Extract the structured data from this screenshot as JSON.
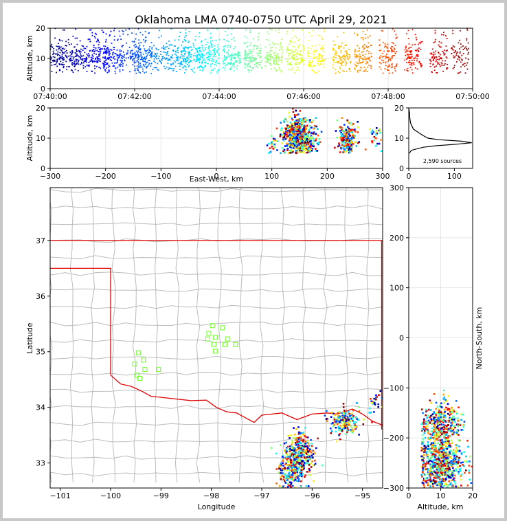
{
  "chart_data": [
    {
      "type": "scatter",
      "panel": "altitude-time",
      "title": "Oklahoma LMA 0740-0750 UTC April 29, 2021",
      "ylabel": "Altitude, km",
      "xlabel": "",
      "x_ticks": [
        "07:40:00",
        "07:42:00",
        "07:44:00",
        "07:46:00",
        "07:48:00",
        "07:50:00"
      ],
      "y_ticks": [
        "0",
        "10",
        "20"
      ],
      "xlim_minutes": [
        0,
        10
      ],
      "ylim": [
        0,
        20
      ],
      "grid": true,
      "color_scale": "jet (blue early -> red late)",
      "density_profile": [
        {
          "t": 0.1,
          "n": 28,
          "spread": 2.5
        },
        {
          "t": 0.4,
          "n": 30,
          "spread": 2.2
        },
        {
          "t": 0.8,
          "n": 32,
          "spread": 2.0
        },
        {
          "t": 1.2,
          "n": 45,
          "spread": 2.8
        },
        {
          "t": 1.5,
          "n": 35,
          "spread": 2.4
        },
        {
          "t": 1.9,
          "n": 30,
          "spread": 2.2
        },
        {
          "t": 2.2,
          "n": 40,
          "spread": 2.5
        },
        {
          "t": 2.6,
          "n": 25,
          "spread": 2.0
        },
        {
          "t": 3.0,
          "n": 35,
          "spread": 2.5
        },
        {
          "t": 3.4,
          "n": 40,
          "spread": 2.2
        },
        {
          "t": 3.8,
          "n": 38,
          "spread": 2.4
        },
        {
          "t": 4.3,
          "n": 40,
          "spread": 2.5
        },
        {
          "t": 4.8,
          "n": 42,
          "spread": 2.6
        },
        {
          "t": 5.3,
          "n": 35,
          "spread": 2.5
        },
        {
          "t": 5.8,
          "n": 38,
          "spread": 2.8
        },
        {
          "t": 6.3,
          "n": 30,
          "spread": 2.4
        },
        {
          "t": 6.9,
          "n": 35,
          "spread": 2.6
        },
        {
          "t": 7.4,
          "n": 38,
          "spread": 2.8
        },
        {
          "t": 8.0,
          "n": 36,
          "spread": 3.0
        },
        {
          "t": 8.6,
          "n": 35,
          "spread": 2.8
        },
        {
          "t": 9.2,
          "n": 32,
          "spread": 2.6
        },
        {
          "t": 9.7,
          "n": 24,
          "spread": 2.6
        }
      ]
    },
    {
      "type": "scatter",
      "panel": "altitude-east-west",
      "xlabel": "East-West, km",
      "ylabel": "Altitude, km",
      "xlim": [
        -300,
        300
      ],
      "ylim": [
        0,
        20
      ],
      "x_ticks": [
        "−300",
        "−200",
        "−100",
        "0",
        "100",
        "200",
        "300"
      ],
      "y_ticks": [
        "0",
        "10",
        "20"
      ],
      "grid": true,
      "clusters": [
        {
          "x": 148,
          "x_spread": 14,
          "z": 10,
          "z_spread": 3.5,
          "n": 700
        },
        {
          "x": 235,
          "x_spread": 8,
          "z": 9,
          "z_spread": 3,
          "n": 250
        },
        {
          "x": 102,
          "x_spread": 5,
          "z": 7,
          "z_spread": 1.5,
          "n": 25
        },
        {
          "x": 290,
          "x_spread": 8,
          "z": 10,
          "z_spread": 2,
          "n": 25
        }
      ]
    },
    {
      "type": "line",
      "panel": "altitude-histogram",
      "xlim": [
        0,
        140
      ],
      "ylim": [
        0,
        20
      ],
      "x_ticks": [
        "0",
        "100"
      ],
      "y_ticks": [
        "0",
        "10",
        "20"
      ],
      "note": "2,590 sources",
      "profile": [
        {
          "z": 5,
          "count": 1
        },
        {
          "z": 6,
          "count": 6
        },
        {
          "z": 7,
          "count": 32
        },
        {
          "z": 7.5,
          "count": 60
        },
        {
          "z": 8,
          "count": 105
        },
        {
          "z": 8.5,
          "count": 138
        },
        {
          "z": 9,
          "count": 115
        },
        {
          "z": 9.5,
          "count": 65
        },
        {
          "z": 10,
          "count": 42
        },
        {
          "z": 11,
          "count": 30
        },
        {
          "z": 12,
          "count": 20
        },
        {
          "z": 13,
          "count": 10
        },
        {
          "z": 14,
          "count": 7
        },
        {
          "z": 15,
          "count": 4
        },
        {
          "z": 16,
          "count": 3
        },
        {
          "z": 17,
          "count": 2
        },
        {
          "z": 18,
          "count": 2
        },
        {
          "z": 19,
          "count": 1
        },
        {
          "z": 20,
          "count": 0
        }
      ]
    },
    {
      "type": "scatter",
      "panel": "plan-view-map",
      "xlabel": "Longitude",
      "ylabel": "Latitude",
      "xlim": [
        -101.2,
        -94.6
      ],
      "ylim": [
        32.55,
        37.95
      ],
      "x_ticks": [
        "−101",
        "−100",
        "−99",
        "−98",
        "−97",
        "−96",
        "−95"
      ],
      "y_ticks": [
        "33",
        "34",
        "35",
        "36",
        "37"
      ],
      "stations": [
        {
          "lon": -99.45,
          "lat": 34.98
        },
        {
          "lon": -99.52,
          "lat": 34.78
        },
        {
          "lon": -99.35,
          "lat": 34.85
        },
        {
          "lon": -99.32,
          "lat": 34.68
        },
        {
          "lon": -99.48,
          "lat": 34.58
        },
        {
          "lon": -99.42,
          "lat": 34.52
        },
        {
          "lon": -99.05,
          "lat": 34.68
        },
        {
          "lon": -97.98,
          "lat": 35.47
        },
        {
          "lon": -97.78,
          "lat": 35.43
        },
        {
          "lon": -98.05,
          "lat": 35.33
        },
        {
          "lon": -97.92,
          "lat": 35.26
        },
        {
          "lon": -98.07,
          "lat": 35.23
        },
        {
          "lon": -97.68,
          "lat": 35.23
        },
        {
          "lon": -97.95,
          "lat": 35.13
        },
        {
          "lon": -97.73,
          "lat": 35.13
        },
        {
          "lon": -97.52,
          "lat": 35.13
        },
        {
          "lon": -97.92,
          "lat": 35.01
        }
      ],
      "clusters": [
        {
          "lon": -96.25,
          "lat": 33.2,
          "lon_spread": 0.15,
          "lat_spread": 0.18,
          "n": 300
        },
        {
          "lon": -96.4,
          "lat": 32.85,
          "lon_spread": 0.12,
          "lat_spread": 0.2,
          "n": 250
        },
        {
          "lon": -95.35,
          "lat": 33.75,
          "lon_spread": 0.15,
          "lat_spread": 0.12,
          "n": 180
        },
        {
          "lon": -94.75,
          "lat": 34.05,
          "lon_spread": 0.08,
          "lat_spread": 0.12,
          "n": 25
        }
      ]
    },
    {
      "type": "scatter",
      "panel": "north-south-altitude",
      "xlabel": "Altitude, km",
      "ylabel": "North-South, km",
      "xlim": [
        0,
        20
      ],
      "ylim": [
        -300,
        300
      ],
      "x_ticks": [
        "0",
        "10",
        "20"
      ],
      "y_ticks": [
        "−300",
        "−200",
        "−100",
        "0",
        "100",
        "200",
        "300"
      ],
      "grid": true,
      "clusters": [
        {
          "z": 10,
          "z_spread": 3.5,
          "y": -175,
          "y_spread": 18,
          "n": 300
        },
        {
          "z": 10,
          "z_spread": 3.5,
          "y": -235,
          "y_spread": 20,
          "n": 350
        },
        {
          "z": 10,
          "z_spread": 3.5,
          "y": -275,
          "y_spread": 20,
          "n": 350
        },
        {
          "z": 10,
          "z_spread": 2.5,
          "y": -140,
          "y_spread": 20,
          "n": 40
        }
      ]
    }
  ],
  "colors": {
    "grid": "#e6e6e6",
    "state_line": "#e00000",
    "county_line": "#bbbbbb",
    "station": "#80ff40"
  }
}
